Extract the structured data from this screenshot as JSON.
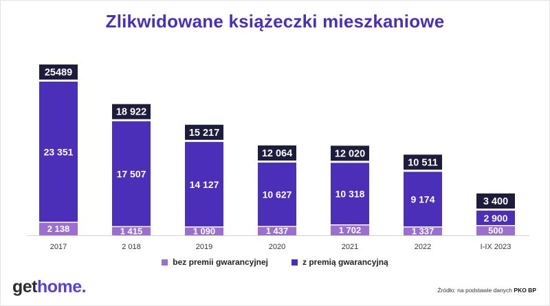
{
  "title": "Zlikwidowane książeczki mieszkaniowe",
  "colors": {
    "title": "#4b2fb8",
    "series_bez": "#9b6fd0",
    "series_z": "#4b2fb8",
    "total_label_bg": "#1e1c3c",
    "logo_dark": "#2b2b2b",
    "logo_accent": "#5a3de0"
  },
  "chart_data": {
    "type": "bar",
    "stacked": true,
    "categories": [
      "2017",
      "2 018",
      "2019",
      "2020",
      "2021",
      "2022",
      "I-IX 2023"
    ],
    "series": [
      {
        "name": "bez premii gwarancyjnej",
        "values": [
          2138,
          1415,
          1090,
          1437,
          1702,
          1337,
          500
        ],
        "labels": [
          "2 138",
          "1 415",
          "1 090",
          "1 437",
          "1 702",
          "1 337",
          "500"
        ]
      },
      {
        "name": "z premią gwarancyjną",
        "values": [
          23351,
          17507,
          14127,
          10627,
          10318,
          9174,
          2900
        ],
        "labels": [
          "23 351",
          "17 507",
          "14 127",
          "10 627",
          "10 318",
          "9 174",
          "2 900"
        ]
      }
    ],
    "totals": [
      25489,
      18922,
      15217,
      12064,
      12020,
      10511,
      3400
    ],
    "total_labels": [
      "25489",
      "18 922",
      "15 217",
      "12 064",
      "12 020",
      "10 511",
      "3 400"
    ],
    "ylim": [
      0,
      25489
    ],
    "grid": false,
    "legend_position": "bottom-center"
  },
  "legend": {
    "items": [
      "bez premii gwarancyjnej",
      "z premią gwarancyjną"
    ]
  },
  "logo": {
    "part1": "get",
    "part2": "home."
  },
  "source": {
    "prefix": "Źródło: na podstawie danych",
    "name": "PKO BP"
  }
}
